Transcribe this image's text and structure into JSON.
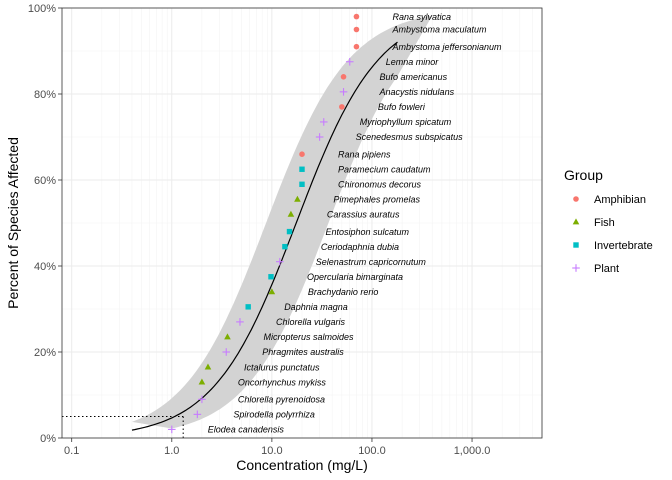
{
  "chart_data": {
    "type": "scatter",
    "title": "",
    "xlabel": "Concentration (mg/L)",
    "ylabel": "Percent of Species Affected",
    "x_scale": "log10",
    "xlim": [
      0.08,
      5000
    ],
    "ylim": [
      0,
      100
    ],
    "x_ticks": [
      0.1,
      1,
      10,
      100,
      1000
    ],
    "x_tick_labels": [
      "0.1",
      "1.0",
      "10.0",
      "100.0",
      "1,000.0"
    ],
    "y_ticks": [
      0,
      20,
      40,
      60,
      80,
      100
    ],
    "y_tick_labels": [
      "0%",
      "20%",
      "40%",
      "60%",
      "80%",
      "100%"
    ],
    "legend": {
      "title": "Group",
      "position": "right",
      "entries": [
        {
          "name": "Amphibian",
          "color": "#F8766D",
          "shape": "circle"
        },
        {
          "name": "Fish",
          "color": "#7CAE00",
          "shape": "triangle"
        },
        {
          "name": "Invertebrate",
          "color": "#00BFC4",
          "shape": "square"
        },
        {
          "name": "Plant",
          "color": "#C77CFF",
          "shape": "plus"
        }
      ]
    },
    "points": [
      {
        "species": "Elodea canadensis",
        "group": "Plant",
        "x": 1.0,
        "y": 2
      },
      {
        "species": "Spirodella polyrrhiza",
        "group": "Plant",
        "x": 1.8,
        "y": 5.5
      },
      {
        "species": "Chlorella pyrenoidosa",
        "group": "Plant",
        "x": 2.0,
        "y": 9
      },
      {
        "species": "Oncorhynchus mykiss",
        "group": "Fish",
        "x": 2.0,
        "y": 13
      },
      {
        "species": "Ictalurus punctatus",
        "group": "Fish",
        "x": 2.3,
        "y": 16.5
      },
      {
        "species": "Phragmites australis",
        "group": "Plant",
        "x": 3.5,
        "y": 20
      },
      {
        "species": "Micropterus salmoides",
        "group": "Fish",
        "x": 3.6,
        "y": 23.5
      },
      {
        "species": "Chlorella vulgaris",
        "group": "Plant",
        "x": 4.8,
        "y": 27
      },
      {
        "species": "Daphnia magna",
        "group": "Invertebrate",
        "x": 5.8,
        "y": 30.5
      },
      {
        "species": "Brachydanio rerio",
        "group": "Fish",
        "x": 10.0,
        "y": 34
      },
      {
        "species": "Opercularia bimarginata",
        "group": "Invertebrate",
        "x": 9.8,
        "y": 37.5
      },
      {
        "species": "Selenastrum capricornutum",
        "group": "Plant",
        "x": 12.0,
        "y": 41
      },
      {
        "species": "Ceriodaphnia dubia",
        "group": "Invertebrate",
        "x": 13.5,
        "y": 44.5
      },
      {
        "species": "Entosiphon sulcatum",
        "group": "Invertebrate",
        "x": 15.0,
        "y": 48
      },
      {
        "species": "Carassius auratus",
        "group": "Fish",
        "x": 15.5,
        "y": 52
      },
      {
        "species": "Pimephales promelas",
        "group": "Fish",
        "x": 18.0,
        "y": 55.5
      },
      {
        "species": "Chironomus decorus",
        "group": "Invertebrate",
        "x": 20.0,
        "y": 59
      },
      {
        "species": "Paramecium caudatum",
        "group": "Invertebrate",
        "x": 20.0,
        "y": 62.5
      },
      {
        "species": "Rana pipiens",
        "group": "Amphibian",
        "x": 20.0,
        "y": 66
      },
      {
        "species": "Scenedesmus subspicatus",
        "group": "Plant",
        "x": 30.0,
        "y": 70
      },
      {
        "species": "Myriophyllum spicatum",
        "group": "Plant",
        "x": 33.0,
        "y": 73.5
      },
      {
        "species": "Bufo fowleri",
        "group": "Amphibian",
        "x": 50.0,
        "y": 77
      },
      {
        "species": "Anacystis nidulans",
        "group": "Plant",
        "x": 52.0,
        "y": 80.5
      },
      {
        "species": "Bufo americanus",
        "group": "Amphibian",
        "x": 52.0,
        "y": 84
      },
      {
        "species": "Lemna minor",
        "group": "Plant",
        "x": 60.0,
        "y": 87.5
      },
      {
        "species": "Ambystoma jeffersonianum",
        "group": "Amphibian",
        "x": 70.0,
        "y": 91
      },
      {
        "species": "Ambystoma maculatum",
        "group": "Amphibian",
        "x": 70.0,
        "y": 95
      },
      {
        "species": "Rana sylvatica",
        "group": "Amphibian",
        "x": 70.0,
        "y": 98
      }
    ],
    "fit_curve": {
      "type": "log-logistic",
      "x_range": [
        0.4,
        180
      ],
      "confidence_band": true,
      "band_color": "#d3d3d3"
    },
    "reference_line": {
      "percent": 5,
      "concentration": 1.3,
      "style": "dotted"
    }
  }
}
